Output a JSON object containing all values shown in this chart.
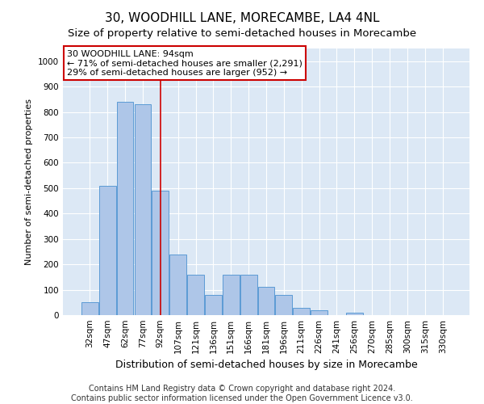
{
  "title": "30, WOODHILL LANE, MORECAMBE, LA4 4NL",
  "subtitle": "Size of property relative to semi-detached houses in Morecambe",
  "xlabel": "Distribution of semi-detached houses by size in Morecambe",
  "ylabel": "Number of semi-detached properties",
  "categories": [
    "32sqm",
    "47sqm",
    "62sqm",
    "77sqm",
    "92sqm",
    "107sqm",
    "121sqm",
    "136sqm",
    "151sqm",
    "166sqm",
    "181sqm",
    "196sqm",
    "211sqm",
    "226sqm",
    "241sqm",
    "256sqm",
    "270sqm",
    "285sqm",
    "300sqm",
    "315sqm",
    "330sqm"
  ],
  "values": [
    50,
    510,
    840,
    830,
    490,
    240,
    160,
    80,
    160,
    160,
    110,
    80,
    30,
    20,
    0,
    10,
    0,
    0,
    0,
    0,
    0
  ],
  "bar_color": "#aec6e8",
  "bar_edge_color": "#5b9bd5",
  "background_color": "#dce8f5",
  "annotation_box_text": "30 WOODHILL LANE: 94sqm\n← 71% of semi-detached houses are smaller (2,291)\n29% of semi-detached houses are larger (952) →",
  "vline_x": 4,
  "vline_color": "#cc0000",
  "annotation_box_color": "#ffffff",
  "annotation_box_edge_color": "#cc0000",
  "ylim": [
    0,
    1050
  ],
  "yticks": [
    0,
    100,
    200,
    300,
    400,
    500,
    600,
    700,
    800,
    900,
    1000
  ],
  "footer": "Contains HM Land Registry data © Crown copyright and database right 2024.\nContains public sector information licensed under the Open Government Licence v3.0.",
  "title_fontsize": 11,
  "subtitle_fontsize": 9.5,
  "xlabel_fontsize": 9,
  "ylabel_fontsize": 8,
  "tick_fontsize": 7.5,
  "footer_fontsize": 7,
  "annot_fontsize": 8
}
